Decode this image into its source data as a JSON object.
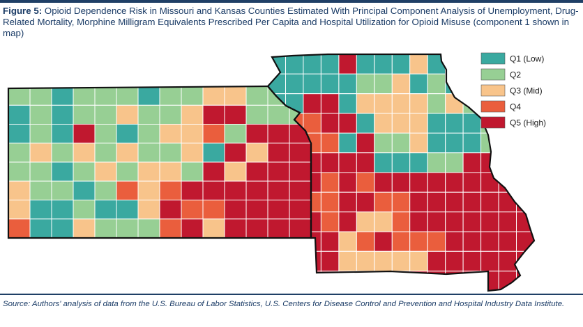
{
  "figure": {
    "label": "Figure 5:",
    "title": "Opioid Dependence Risk in Missouri and Kansas Counties Estimated With Principal Component Analysis of Unemployment, Drug-Related Mortality, Morphine Milligram Equivalents Prescribed Per Capita and Hospital Utilization for Opioid Misuse (component 1 shown in map)"
  },
  "legend": {
    "items": [
      {
        "label": "Q1 (Low)",
        "color": "#3aa9a0"
      },
      {
        "label": "Q2",
        "color": "#97cf94"
      },
      {
        "label": "Q3 (Mid)",
        "color": "#f8c48b"
      },
      {
        "label": "Q4",
        "color": "#ea5e3d"
      },
      {
        "label": "Q5 (High)",
        "color": "#c0182f"
      }
    ]
  },
  "map": {
    "states": [
      "Kansas",
      "Missouri"
    ],
    "quintile_colors": [
      "#3aa9a0",
      "#97cf94",
      "#f8c48b",
      "#ea5e3d",
      "#c0182f"
    ]
  },
  "source": "Source: Authors' analysis of data from the U.S. Bureau of Labor Statistics, U.S. Centers for Disease Control and Prevention and Hospital Industry Data Institute."
}
